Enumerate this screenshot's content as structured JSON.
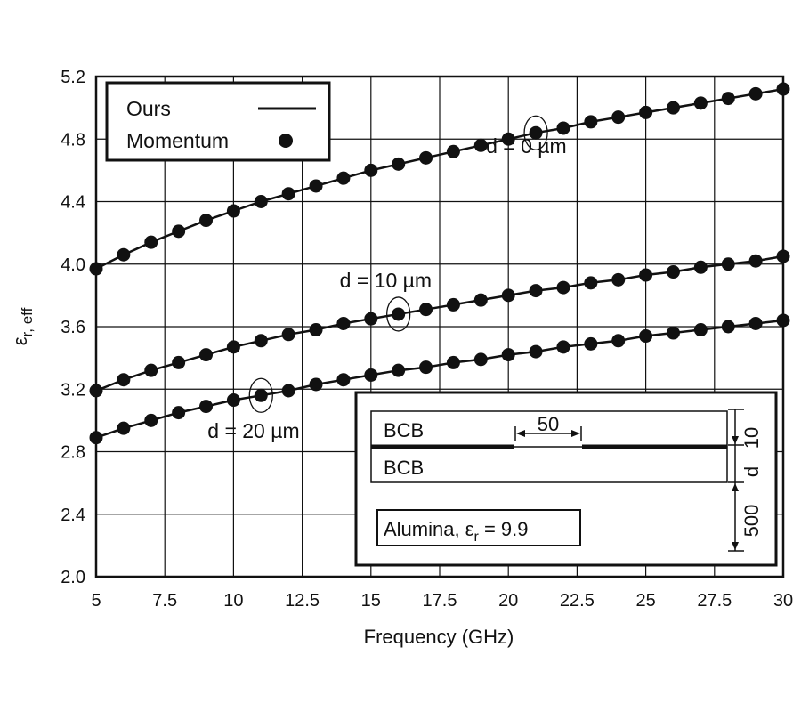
{
  "chart_data": {
    "type": "line",
    "xlabel": "Frequency (GHz)",
    "ylabel": "ε",
    "ylabel_sub": "r, eff",
    "xlim": [
      5,
      30
    ],
    "ylim": [
      2.0,
      5.2
    ],
    "x_ticks": [
      "5",
      "7.5",
      "10",
      "12.5",
      "15",
      "17.5",
      "20",
      "22.5",
      "25",
      "27.5",
      "30"
    ],
    "y_ticks": [
      "2.0",
      "2.4",
      "2.8",
      "3.2",
      "3.6",
      "4.0",
      "4.4",
      "4.8",
      "5.2"
    ],
    "grid": true,
    "legend": {
      "position": "top-left",
      "entries": [
        {
          "label": "Ours",
          "marker": "line"
        },
        {
          "label": "Momentum",
          "marker": "dot"
        }
      ]
    },
    "x": [
      5,
      6,
      7,
      8,
      9,
      10,
      11,
      12,
      13,
      14,
      15,
      16,
      17,
      18,
      19,
      20,
      21,
      22,
      23,
      24,
      25,
      26,
      27,
      28,
      29,
      30
    ],
    "series": [
      {
        "annotation": "d = 0 µm",
        "highlight_x": 21,
        "values": [
          3.97,
          4.06,
          4.14,
          4.21,
          4.28,
          4.34,
          4.4,
          4.45,
          4.5,
          4.55,
          4.6,
          4.64,
          4.68,
          4.72,
          4.76,
          4.8,
          4.84,
          4.87,
          4.91,
          4.94,
          4.97,
          5.0,
          5.03,
          5.06,
          5.09,
          5.12
        ]
      },
      {
        "annotation": "d = 10 µm",
        "highlight_x": 16,
        "values": [
          3.19,
          3.26,
          3.32,
          3.37,
          3.42,
          3.47,
          3.51,
          3.55,
          3.58,
          3.62,
          3.65,
          3.68,
          3.71,
          3.74,
          3.77,
          3.8,
          3.83,
          3.85,
          3.88,
          3.9,
          3.93,
          3.95,
          3.98,
          4.0,
          4.02,
          4.05
        ]
      },
      {
        "annotation": "d = 20 µm",
        "highlight_x": 11,
        "values": [
          2.89,
          2.95,
          3.0,
          3.05,
          3.09,
          3.13,
          3.16,
          3.19,
          3.23,
          3.26,
          3.29,
          3.32,
          3.34,
          3.37,
          3.39,
          3.42,
          3.44,
          3.47,
          3.49,
          3.51,
          3.54,
          3.56,
          3.58,
          3.6,
          3.62,
          3.64
        ]
      }
    ],
    "inset": {
      "layer_top": "BCB",
      "layer_bottom": "BCB",
      "width_label": "50",
      "substrate_label": "Alumina, ε",
      "substrate_sub": "r",
      "substrate_value": " = 9.9",
      "dim_top": "10",
      "dim_mid": "d",
      "dim_bottom": "500"
    }
  }
}
